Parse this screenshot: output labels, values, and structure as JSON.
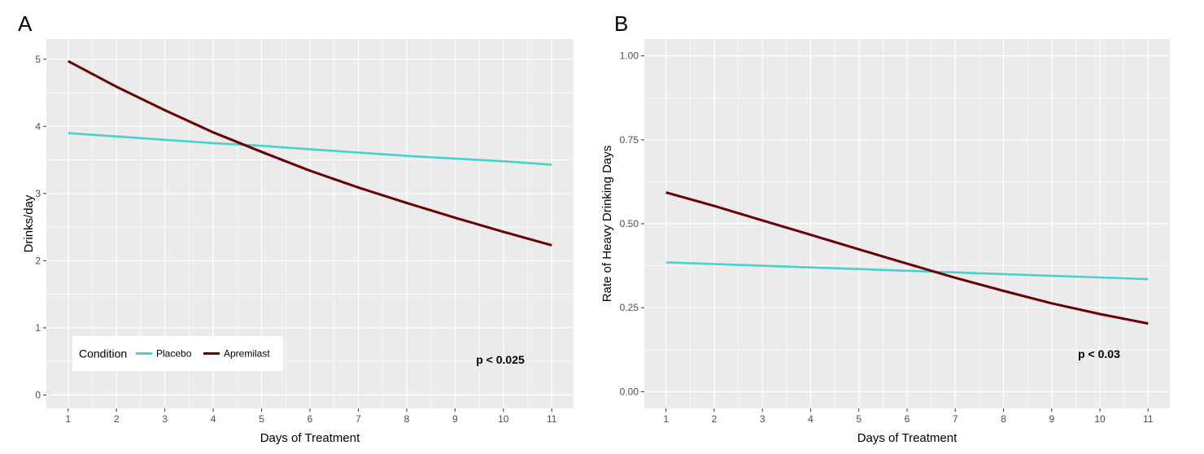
{
  "chart_data": [
    {
      "type": "line",
      "panel_label": "A",
      "xlabel": "Days of Treatment",
      "ylabel": "Drinks/day",
      "xlim": [
        0.55,
        11.45
      ],
      "ylim": [
        -0.2,
        5.3
      ],
      "x_ticks": [
        1,
        2,
        3,
        4,
        5,
        6,
        7,
        8,
        9,
        10,
        11
      ],
      "y_ticks": [
        0,
        1,
        2,
        3,
        4,
        5
      ],
      "y_tick_labels": [
        "0",
        "1",
        "2",
        "3",
        "4",
        "5"
      ],
      "grid": true,
      "x": [
        1,
        2,
        3,
        4,
        5,
        6,
        7,
        8,
        9,
        10,
        11
      ],
      "series": [
        {
          "name": "Placebo",
          "color": "#48d1cc",
          "values": [
            3.9,
            3.85,
            3.8,
            3.75,
            3.71,
            3.66,
            3.61,
            3.56,
            3.52,
            3.48,
            3.43
          ]
        },
        {
          "name": "Apremilast",
          "color": "#6b0000",
          "values": [
            4.97,
            4.59,
            4.24,
            3.91,
            3.62,
            3.34,
            3.09,
            2.86,
            2.64,
            2.43,
            2.23
          ]
        }
      ],
      "annotation": "p < 0.025",
      "legend": {
        "title": "Condition",
        "position": "bottom-left"
      }
    },
    {
      "type": "line",
      "panel_label": "B",
      "xlabel": "Days of Treatment",
      "ylabel": "Rate of Heavy Drinking Days",
      "xlim": [
        0.55,
        11.45
      ],
      "ylim": [
        -0.05,
        1.05
      ],
      "x_ticks": [
        1,
        2,
        3,
        4,
        5,
        6,
        7,
        8,
        9,
        10,
        11
      ],
      "y_ticks": [
        0,
        0.25,
        0.5,
        0.75,
        1.0
      ],
      "y_tick_labels": [
        "0.00",
        "0.25",
        "0.50",
        "0.75",
        "1.00"
      ],
      "grid": true,
      "x": [
        1,
        2,
        3,
        4,
        5,
        6,
        7,
        8,
        9,
        10,
        11
      ],
      "series": [
        {
          "name": "Placebo",
          "color": "#48d1cc",
          "values": [
            0.385,
            0.38,
            0.375,
            0.37,
            0.365,
            0.36,
            0.355,
            0.35,
            0.345,
            0.34,
            0.335
          ]
        },
        {
          "name": "Apremilast",
          "color": "#6b0000",
          "values": [
            0.593,
            0.553,
            0.51,
            0.467,
            0.424,
            0.381,
            0.339,
            0.3,
            0.263,
            0.231,
            0.203
          ]
        }
      ],
      "annotation": "p < 0.03"
    }
  ]
}
